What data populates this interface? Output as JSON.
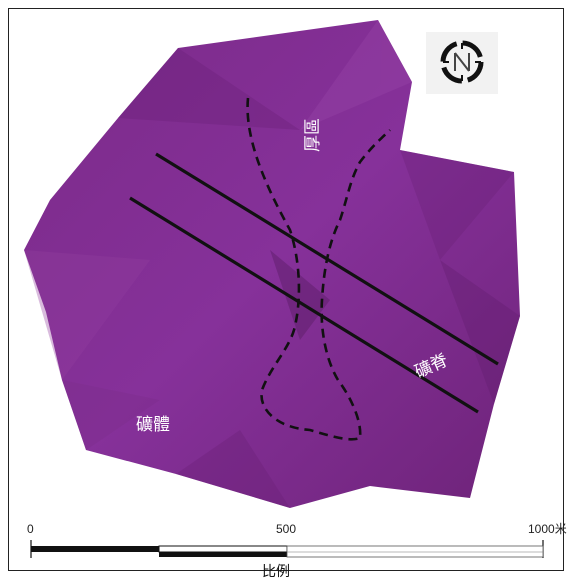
{
  "labels": {
    "ore_body": "礦體",
    "thick_zone": "厚區",
    "ore_ridge": "礦脊"
  },
  "scale_bar": {
    "ticks": [
      "0",
      "500",
      "1000米"
    ],
    "caption": "比例"
  },
  "compass_icon": "north-arrow-icon",
  "colors": {
    "ore_body_fill": "#7e2a8a",
    "ore_body_dark": "#5d1e67",
    "ore_body_light": "#9140a0",
    "ridge_line": "#111111",
    "frame": "#222222"
  }
}
